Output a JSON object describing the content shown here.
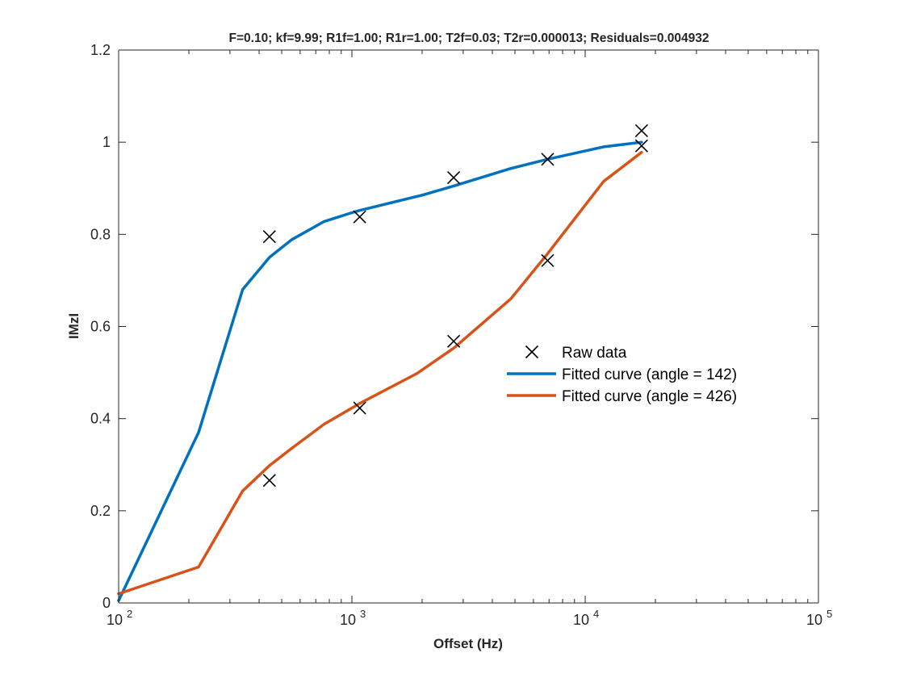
{
  "chart_data": {
    "type": "line",
    "title": "F=0.10; kf=9.99; R1f=1.00; R1r=1.00; T2f=0.03; T2r=0.000013; Residuals=0.004932",
    "xlabel": "Offset (Hz)",
    "ylabel": "IMzI",
    "xscale": "log",
    "xlim": [
      100,
      100000
    ],
    "ylim": [
      0,
      1.2
    ],
    "grid": false,
    "legend_position": "center-right",
    "x_ticks": [
      {
        "base": "10",
        "exp": "2",
        "value": 100
      },
      {
        "base": "10",
        "exp": "3",
        "value": 1000
      },
      {
        "base": "10",
        "exp": "4",
        "value": 10000
      },
      {
        "base": "10",
        "exp": "5",
        "value": 100000
      }
    ],
    "y_ticks": [
      {
        "label": "0",
        "value": 0
      },
      {
        "label": "0.2",
        "value": 0.2
      },
      {
        "label": "0.4",
        "value": 0.4
      },
      {
        "label": "0.6",
        "value": 0.6
      },
      {
        "label": "0.8",
        "value": 0.8
      },
      {
        "label": "1",
        "value": 1
      },
      {
        "label": "1.2",
        "value": 1.2
      }
    ],
    "raw_data": {
      "name": "Raw data",
      "marker": "x",
      "color": "#000000",
      "points": [
        {
          "x": 443,
          "y": 0.795
        },
        {
          "x": 1080,
          "y": 0.838
        },
        {
          "x": 2730,
          "y": 0.923
        },
        {
          "x": 6900,
          "y": 0.963
        },
        {
          "x": 17450,
          "y": 1.025
        },
        {
          "x": 17450,
          "y": 0.992
        },
        {
          "x": 443,
          "y": 0.266
        },
        {
          "x": 1080,
          "y": 0.423
        },
        {
          "x": 2730,
          "y": 0.568
        },
        {
          "x": 6900,
          "y": 0.743
        }
      ]
    },
    "series": [
      {
        "name": "Fitted curve (angle = 142)",
        "color": "#0072BD",
        "x": [
          100,
          220,
          340,
          443,
          550,
          760,
          1000,
          1080,
          2000,
          2730,
          4800,
          6900,
          12000,
          17450
        ],
        "y": [
          0.005,
          0.37,
          0.68,
          0.75,
          0.788,
          0.828,
          0.847,
          0.852,
          0.885,
          0.905,
          0.943,
          0.963,
          0.99,
          1.0
        ]
      },
      {
        "name": "Fitted curve (angle = 426)",
        "color": "#D95319",
        "x": [
          100,
          220,
          340,
          443,
          550,
          760,
          1000,
          1080,
          1900,
          2730,
          4800,
          6900,
          12000,
          17450
        ],
        "y": [
          0.02,
          0.078,
          0.243,
          0.298,
          0.335,
          0.388,
          0.423,
          0.433,
          0.498,
          0.553,
          0.66,
          0.758,
          0.915,
          0.978
        ]
      }
    ]
  }
}
